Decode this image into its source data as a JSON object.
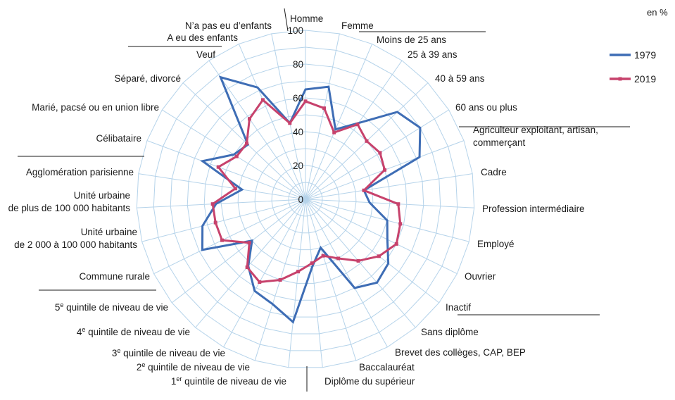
{
  "chart_data": {
    "type": "radar",
    "unit": "en %",
    "rmax": 100,
    "ticks": [
      0,
      20,
      40,
      60,
      80,
      100
    ],
    "categories": [
      "Homme",
      "Femme",
      "Moins de 25 ans",
      "25 à 39 ans",
      "40 à 59 ans",
      "60 ans ou plus",
      "Agriculteur exploitant, artisan, commerçant",
      "Cadre",
      "Profession intermédiaire",
      "Employé",
      "Ouvrier",
      "Inactif",
      "Sans diplôme",
      "Brevet des collèges, CAP, BEP",
      "Baccalauréat",
      "Diplôme du supérieur",
      "1er quintile de niveau de vie",
      "2e quintile de niveau de vie",
      "3e quintile de niveau de vie",
      "4e quintile de niveau de vie",
      "5e quintile de niveau de vie",
      "Commune rurale",
      "Unité urbaine de 2 000 à 100 000 habitants",
      "Unité urbaine de plus de 100 000 habitants",
      "Agglomération parisienne",
      "Célibataire",
      "Marié, pacsé ou en union libre",
      "Séparé, divorcé",
      "Veuf",
      "A eu des enfants",
      "N'a pas eu d'enfants"
    ],
    "series": [
      {
        "name": "1979",
        "color": "#3e6db5",
        "values": [
          65,
          68,
          45,
          55,
          75,
          80,
          72,
          35,
          38,
          50,
          54,
          62,
          65,
          60,
          30,
          40,
          73,
          65,
          62,
          52,
          40,
          68,
          63,
          53,
          38,
          65,
          50,
          47,
          88,
          72,
          46
        ]
      },
      {
        "name": "2019",
        "color": "#c7426c",
        "values": [
          58,
          55,
          43,
          54,
          50,
          52,
          50,
          35,
          55,
          58,
          60,
          55,
          48,
          40,
          35,
          38,
          43,
          50,
          56,
          53,
          42,
          55,
          55,
          55,
          42,
          55,
          48,
          48,
          58,
          64,
          46
        ]
      }
    ]
  }
}
